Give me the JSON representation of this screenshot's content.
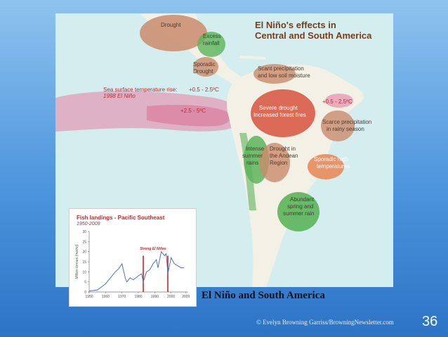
{
  "map": {
    "title_line1": "El Niño's effects in",
    "title_line2": "Central and South America",
    "labels": {
      "drought_north": "Drought",
      "excess_rainfall_1": "Excess",
      "excess_rainfall_2": "rainfall",
      "sporadic_drought_1": "Sporadic",
      "sporadic_drought_2": "Drought",
      "scant_precip_1": "Scant precipitation",
      "scant_precip_2": "and low soil moisture",
      "sst_rise": "Sea surface temperature rise:",
      "sst_year": "1998 El Niño",
      "sst_small": "+0.5 - 2.5ºC",
      "sst_large": "+2.5 - 5ºC",
      "severe_drought_1": "Severe drought",
      "severe_drought_2": "Increased forest fires",
      "sst_atlantic": "+0.5 - 2.5ºC",
      "scarce_precip_1": "Scarce precipitation",
      "scarce_precip_2": "in rainy season",
      "intense_summer_1": "Intense",
      "intense_summer_2": "summer",
      "intense_summer_3": "rains",
      "andean_drought_1": "Drought in",
      "andean_drought_2": "the Andean",
      "andean_drought_3": "Region",
      "sporadic_high_1": "Sporadic high",
      "sporadic_high_2": "temperatures",
      "abundant_rain_1": "Abundant",
      "abundant_rain_2": "spring and",
      "abundant_rain_3": "summer rain"
    },
    "colors": {
      "ocean": "#d4eef0",
      "land": "#f3f0e6",
      "drought": "#c98b6b",
      "severe": "#d9604a",
      "wet": "#5bb45a",
      "sst": "#e57fa0"
    }
  },
  "chart_data": {
    "type": "line",
    "title": "Fish landings - Pacific Southeast",
    "subtitle": "1950-2009",
    "ylabel": "Million tonnes (metric)",
    "xlabel": "",
    "x": [
      1950,
      1955,
      1960,
      1963,
      1966,
      1968,
      1970,
      1972,
      1973,
      1975,
      1977,
      1980,
      1982,
      1983,
      1985,
      1987,
      1989,
      1991,
      1992,
      1994,
      1996,
      1997,
      1998,
      2000,
      2002,
      2004,
      2006,
      2008
    ],
    "series": [
      {
        "values": [
          0.5,
          1,
          4,
          7,
          10,
          11.5,
          14,
          7,
          5,
          7,
          6,
          8,
          9,
          5,
          10,
          11,
          14,
          16,
          12,
          20,
          18,
          19,
          9,
          17,
          14,
          13,
          12,
          12
        ]
      }
    ],
    "annotation": "Strong El Niños",
    "highlight_years": [
      1983,
      1998
    ],
    "ylim": [
      0,
      30
    ],
    "xlim": [
      1950,
      2010
    ],
    "yticks": [
      "0",
      "5",
      "10",
      "15",
      "20",
      "25",
      "30"
    ],
    "xticks": [
      "1950",
      "1960",
      "1970",
      "1980",
      "1990",
      "2000",
      "2009"
    ]
  },
  "caption": "El Niño and South America",
  "footer": {
    "copyright": "© Evelyn Browning Garriss/BrowningNewsletter.com",
    "slide_number": "36"
  }
}
